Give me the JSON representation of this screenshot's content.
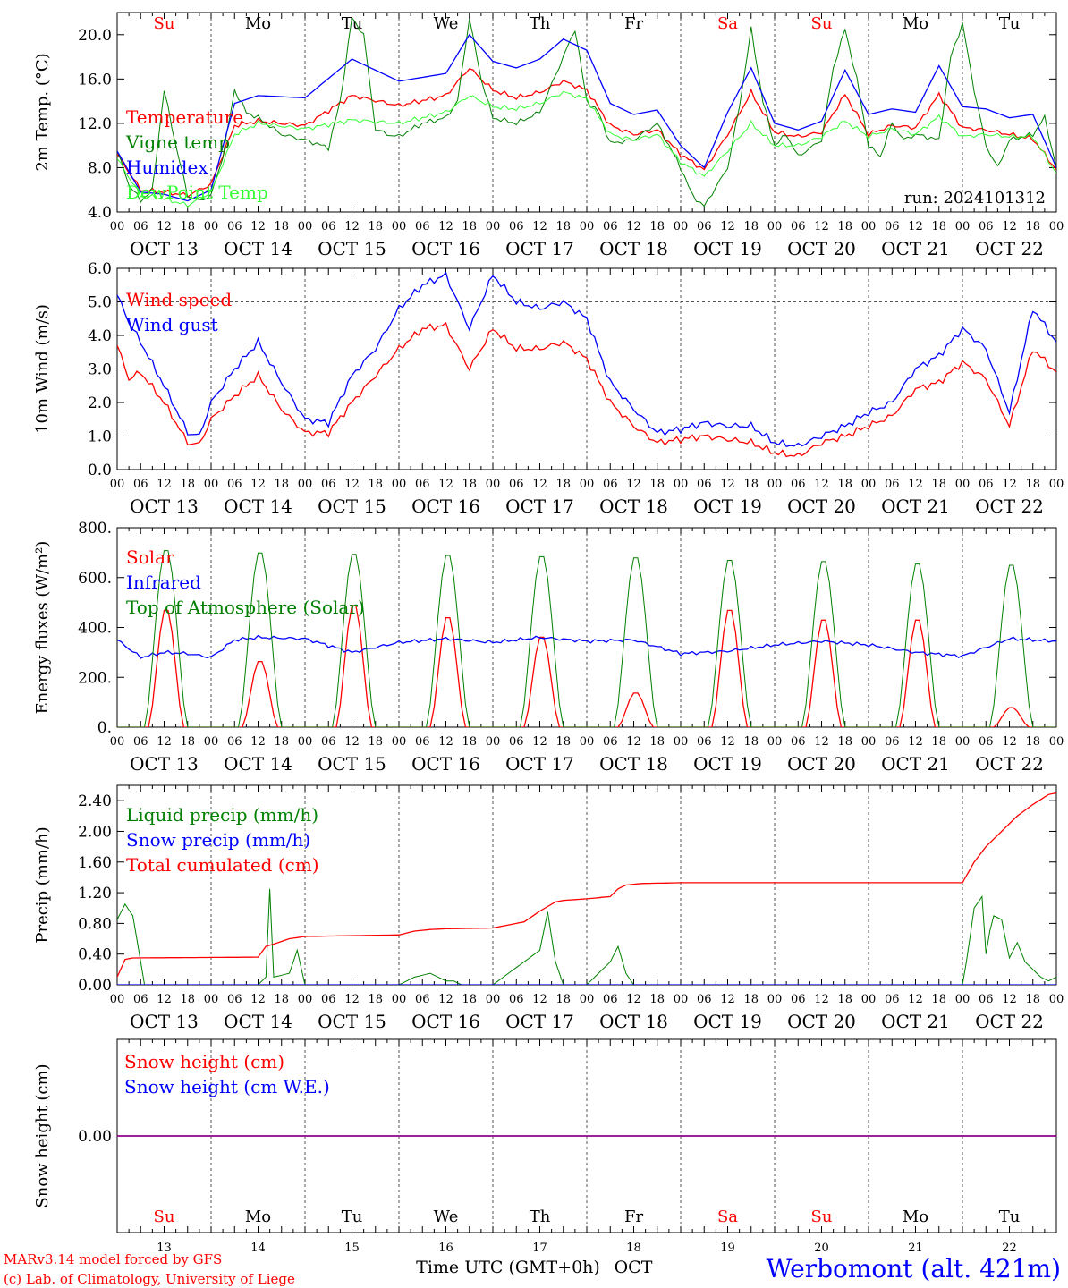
{
  "days": [
    {
      "weekday": "Su",
      "date": "OCT 13",
      "num": "13",
      "weekend": true
    },
    {
      "weekday": "Mo",
      "date": "OCT 14",
      "num": "14",
      "weekend": false
    },
    {
      "weekday": "Tu",
      "date": "OCT 15",
      "num": "15",
      "weekend": false
    },
    {
      "weekday": "We",
      "date": "OCT 16",
      "num": "16",
      "weekend": false
    },
    {
      "weekday": "Th",
      "date": "OCT 17",
      "num": "17",
      "weekend": false
    },
    {
      "weekday": "Fr",
      "date": "OCT 18",
      "num": "18",
      "weekend": false
    },
    {
      "weekday": "Sa",
      "date": "OCT 19",
      "num": "19",
      "weekend": true
    },
    {
      "weekday": "Su",
      "date": "OCT 20",
      "num": "20",
      "weekend": true
    },
    {
      "weekday": "Mo",
      "date": "OCT 21",
      "num": "21",
      "weekend": false
    },
    {
      "weekday": "Tu",
      "date": "OCT 22",
      "num": "22",
      "weekend": false
    }
  ],
  "hour_ticks": [
    "00",
    "06",
    "12",
    "18"
  ],
  "footer": {
    "model_line": "MARv3.14 model forced by GFS",
    "credit_line": "(c) Lab. of Climatology, University of Liege",
    "time_axis_label": "Time UTC (GMT+0h)",
    "month_label": "OCT",
    "station": "Werbomont (alt. 421m)"
  },
  "colors": {
    "red": "#ff0000",
    "blue": "#0000ff",
    "darkgreen": "#008000",
    "lightgreen": "#33ff33",
    "purple": "#8000a0",
    "grey": "#777777"
  },
  "chart_data": [
    {
      "id": "temp",
      "type": "line",
      "ylabel": "2m Temp. (°C)",
      "ylim": [
        4.0,
        22.0
      ],
      "yticks": [
        4.0,
        8.0,
        12.0,
        16.0,
        20.0
      ],
      "tick_labels": [
        "4.0",
        "8.0",
        "12.0",
        "16.0",
        "20.0"
      ],
      "show_weekdays": true,
      "annotation": "run: 2024101312",
      "x_unit": "hours since OCT 13 00 UTC",
      "series": [
        {
          "name": "Temperature",
          "color": "red",
          "x": [
            0,
            6,
            12,
            18,
            24,
            30,
            36,
            48,
            60,
            72,
            84,
            90,
            96,
            102,
            108,
            114,
            120,
            126,
            132,
            138,
            144,
            150,
            156,
            162,
            168,
            174,
            180,
            186,
            192,
            198,
            204,
            210,
            216,
            222,
            228,
            234,
            240
          ],
          "values": [
            9.2,
            6.0,
            5.8,
            5.5,
            6.5,
            11.8,
            12.2,
            11.8,
            14.5,
            13.6,
            14.5,
            17.0,
            15.0,
            14.3,
            14.8,
            15.8,
            15.0,
            11.8,
            11.0,
            11.4,
            9.2,
            7.8,
            11.0,
            14.8,
            11.2,
            10.8,
            11.2,
            14.6,
            11.0,
            11.8,
            11.6,
            14.6,
            11.6,
            11.4,
            11.0,
            10.6,
            7.8
          ]
        },
        {
          "name": "Vigne temp",
          "color": "darkgreen",
          "x": [
            0,
            3,
            6,
            9,
            12,
            15,
            18,
            21,
            24,
            27,
            30,
            33,
            36,
            42,
            48,
            54,
            57,
            60,
            63,
            66,
            69,
            72,
            78,
            84,
            87,
            90,
            93,
            96,
            102,
            108,
            114,
            117,
            120,
            123,
            126,
            132,
            138,
            144,
            147,
            150,
            156,
            159,
            162,
            165,
            168,
            171,
            174,
            180,
            183,
            186,
            189,
            192,
            195,
            198,
            201,
            204,
            210,
            213,
            216,
            219,
            222,
            225,
            228,
            234,
            237,
            240
          ],
          "values": [
            9.5,
            6.5,
            5.0,
            6.0,
            15.0,
            10.0,
            5.5,
            5.0,
            5.5,
            9.0,
            15.0,
            13.0,
            12.5,
            11.0,
            10.5,
            9.8,
            14.0,
            21.5,
            20.0,
            11.5,
            11.0,
            10.8,
            12.0,
            12.5,
            14.0,
            21.5,
            16.0,
            12.5,
            12.0,
            13.0,
            18.0,
            20.5,
            14.0,
            13.0,
            10.2,
            10.5,
            12.0,
            8.0,
            5.5,
            4.5,
            8.0,
            13.5,
            20.5,
            14.0,
            10.0,
            11.0,
            9.0,
            10.5,
            17.0,
            20.5,
            16.0,
            10.0,
            9.0,
            12.0,
            10.5,
            11.0,
            10.5,
            18.0,
            21.0,
            15.0,
            10.0,
            8.0,
            10.5,
            11.0,
            12.5,
            8.0
          ]
        },
        {
          "name": "Humidex",
          "color": "blue",
          "x": [
            0,
            6,
            12,
            18,
            24,
            30,
            36,
            48,
            60,
            72,
            84,
            90,
            96,
            102,
            108,
            114,
            120,
            126,
            132,
            138,
            144,
            150,
            156,
            162,
            168,
            174,
            180,
            186,
            192,
            198,
            204,
            210,
            216,
            222,
            228,
            234,
            240
          ],
          "values": [
            9.5,
            5.8,
            5.6,
            5.0,
            6.0,
            13.8,
            14.5,
            14.3,
            17.8,
            15.8,
            16.5,
            20.0,
            17.6,
            17.0,
            17.8,
            19.6,
            18.6,
            13.8,
            12.8,
            13.2,
            10.0,
            8.0,
            13.0,
            17.0,
            12.0,
            11.4,
            12.2,
            16.8,
            12.8,
            13.3,
            13.0,
            17.2,
            13.5,
            13.3,
            12.5,
            12.8,
            8.0
          ]
        },
        {
          "name": "DewPoint Temp",
          "color": "lightgreen",
          "x": [
            0,
            6,
            12,
            18,
            24,
            30,
            36,
            48,
            60,
            72,
            84,
            90,
            96,
            102,
            108,
            114,
            120,
            126,
            132,
            138,
            144,
            150,
            156,
            162,
            168,
            174,
            180,
            186,
            192,
            198,
            204,
            210,
            216,
            222,
            228,
            234,
            240
          ],
          "values": [
            8.8,
            5.5,
            5.2,
            4.6,
            5.8,
            11.0,
            12.0,
            11.5,
            12.3,
            12.0,
            13.0,
            14.5,
            13.5,
            13.3,
            13.8,
            14.8,
            14.2,
            11.0,
            10.5,
            11.0,
            8.5,
            7.2,
            9.5,
            12.0,
            10.0,
            10.0,
            10.8,
            12.2,
            10.8,
            11.5,
            11.0,
            12.6,
            10.8,
            11.0,
            10.8,
            10.8,
            7.5
          ]
        }
      ]
    },
    {
      "id": "wind",
      "type": "line",
      "ylabel": "10m Wind (m/s)",
      "ylim": [
        0.0,
        6.0
      ],
      "yticks": [
        0.0,
        1.0,
        2.0,
        3.0,
        4.0,
        5.0,
        6.0
      ],
      "tick_labels": [
        "0.0",
        "1.0",
        "2.0",
        "3.0",
        "4.0",
        "5.0",
        "6.0"
      ],
      "dashed_y": [
        5.0
      ],
      "show_weekdays": false,
      "series": [
        {
          "name": "Wind speed",
          "color": "red",
          "x": [
            0,
            3,
            6,
            12,
            18,
            21,
            24,
            30,
            36,
            42,
            48,
            54,
            60,
            66,
            72,
            78,
            84,
            90,
            96,
            102,
            108,
            114,
            120,
            126,
            132,
            138,
            144,
            150,
            156,
            162,
            168,
            174,
            180,
            186,
            192,
            198,
            204,
            210,
            216,
            222,
            228,
            234,
            240
          ],
          "values": [
            3.7,
            2.7,
            2.9,
            2.0,
            0.8,
            0.75,
            1.5,
            2.2,
            2.8,
            1.8,
            1.1,
            1.1,
            2.0,
            2.8,
            3.6,
            4.2,
            4.3,
            3.0,
            4.2,
            3.6,
            3.6,
            3.8,
            3.3,
            2.0,
            1.3,
            0.8,
            0.9,
            1.0,
            0.9,
            0.8,
            0.5,
            0.4,
            0.8,
            1.0,
            1.3,
            1.6,
            2.4,
            2.6,
            3.2,
            2.7,
            1.3,
            3.6,
            2.9
          ]
        },
        {
          "name": "Wind gust",
          "color": "blue",
          "x": [
            0,
            3,
            6,
            12,
            18,
            21,
            24,
            30,
            36,
            42,
            48,
            54,
            60,
            66,
            72,
            78,
            84,
            90,
            96,
            102,
            108,
            114,
            120,
            126,
            132,
            138,
            144,
            150,
            156,
            162,
            168,
            174,
            180,
            186,
            192,
            198,
            204,
            210,
            216,
            222,
            228,
            234,
            240
          ],
          "values": [
            5.2,
            4.4,
            3.8,
            2.5,
            1.1,
            1.0,
            2.0,
            3.0,
            3.8,
            2.6,
            1.5,
            1.4,
            2.8,
            3.6,
            4.8,
            5.5,
            5.8,
            4.2,
            5.8,
            5.0,
            4.8,
            5.0,
            4.5,
            2.6,
            1.8,
            1.1,
            1.2,
            1.4,
            1.3,
            1.3,
            0.8,
            0.7,
            1.0,
            1.3,
            1.7,
            2.0,
            3.0,
            3.4,
            4.2,
            3.6,
            1.7,
            4.8,
            3.8
          ]
        }
      ]
    },
    {
      "id": "flux",
      "type": "line",
      "ylabel": "Energy fluxes (W/m²)",
      "ylim": [
        0,
        800
      ],
      "yticks": [
        0,
        200,
        400,
        600,
        800
      ],
      "tick_labels": [
        "0.",
        "200.",
        "400.",
        "600.",
        "800."
      ],
      "show_weekdays": false,
      "series": [
        {
          "name": "Solar",
          "color": "red",
          "peaks": [
            480,
            270,
            500,
            450,
            370,
            140,
            480,
            440,
            440,
            80
          ],
          "width_hours": 9
        },
        {
          "name": "Infrared",
          "color": "blue",
          "x": [
            0,
            6,
            12,
            18,
            24,
            30,
            36,
            48,
            60,
            72,
            84,
            96,
            108,
            120,
            132,
            144,
            156,
            168,
            180,
            192,
            204,
            216,
            228,
            240
          ],
          "values": [
            350,
            280,
            300,
            295,
            280,
            350,
            360,
            355,
            300,
            340,
            355,
            340,
            360,
            345,
            350,
            295,
            305,
            330,
            345,
            330,
            300,
            285,
            355,
            345
          ]
        },
        {
          "name": "Top of Atmosphere (Solar)",
          "color": "darkgreen",
          "peaks": [
            720,
            710,
            705,
            700,
            695,
            690,
            680,
            675,
            665,
            660
          ],
          "width_hours": 11
        }
      ]
    },
    {
      "id": "precip",
      "type": "line",
      "ylabel": "Precip (mm/h)",
      "ylim": [
        0.0,
        2.6
      ],
      "yticks": [
        0.0,
        0.4,
        0.8,
        1.2,
        1.6,
        2.0,
        2.4
      ],
      "tick_labels": [
        "0.00",
        "0.40",
        "0.80",
        "1.20",
        "1.60",
        "2.00",
        "2.40"
      ],
      "show_weekdays": false,
      "series": [
        {
          "name": "Liquid precip (mm/h)",
          "color": "darkgreen",
          "x": [
            0,
            2,
            4,
            7,
            10,
            36,
            38,
            39,
            40,
            44,
            46,
            48,
            60,
            72,
            76,
            80,
            84,
            86,
            88,
            90,
            96,
            104,
            108,
            110,
            112,
            114,
            116,
            120,
            126,
            128,
            130,
            132,
            134,
            138,
            144,
            160,
            170,
            216,
            217,
            219,
            221,
            222,
            223,
            224,
            226,
            228,
            230,
            232,
            233,
            234,
            236,
            238,
            240
          ],
          "values": [
            0.85,
            1.05,
            0.9,
            0.0,
            0.0,
            0.0,
            0.1,
            1.25,
            0.1,
            0.15,
            0.45,
            0.0,
            0.0,
            0.0,
            0.1,
            0.15,
            0.05,
            0.05,
            0.0,
            0.0,
            0.0,
            0.3,
            0.45,
            0.95,
            0.3,
            0.0,
            0.0,
            0.0,
            0.3,
            0.5,
            0.15,
            0.0,
            0.0,
            0.0,
            0.0,
            0.0,
            0.0,
            0.0,
            0.3,
            1.0,
            1.15,
            0.4,
            0.7,
            0.9,
            0.85,
            0.35,
            0.55,
            0.3,
            0.25,
            0.2,
            0.1,
            0.05,
            0.1
          ]
        },
        {
          "name": "Snow precip (mm/h)",
          "color": "blue",
          "x": [
            0,
            240
          ],
          "values": [
            0.0,
            0.0
          ]
        },
        {
          "name": "Total cumulated (cm)",
          "color": "red",
          "x": [
            0,
            2,
            4,
            36,
            38,
            40,
            44,
            48,
            60,
            72,
            76,
            80,
            84,
            96,
            104,
            108,
            112,
            114,
            120,
            126,
            128,
            130,
            134,
            144,
            180,
            216,
            219,
            222,
            226,
            230,
            234,
            238,
            240
          ],
          "values": [
            0.1,
            0.33,
            0.35,
            0.36,
            0.5,
            0.53,
            0.6,
            0.63,
            0.64,
            0.65,
            0.7,
            0.72,
            0.73,
            0.74,
            0.82,
            0.96,
            1.08,
            1.1,
            1.12,
            1.15,
            1.25,
            1.3,
            1.32,
            1.33,
            1.33,
            1.33,
            1.6,
            1.8,
            2.0,
            2.2,
            2.35,
            2.48,
            2.5
          ]
        }
      ]
    },
    {
      "id": "snow",
      "type": "line",
      "ylabel": "Snow height (cm)",
      "ylim": [
        -1,
        1
      ],
      "yticks": [
        0.0
      ],
      "tick_labels": [
        "0.00"
      ],
      "show_weekdays": true,
      "series": [
        {
          "name": "Snow height (cm)",
          "color": "red",
          "x": [
            0,
            240
          ],
          "values": [
            0,
            0
          ]
        },
        {
          "name": "Snow height (cm W.E.)",
          "color": "blue",
          "x": [
            0,
            240
          ],
          "values": [
            0,
            0
          ]
        }
      ]
    }
  ]
}
